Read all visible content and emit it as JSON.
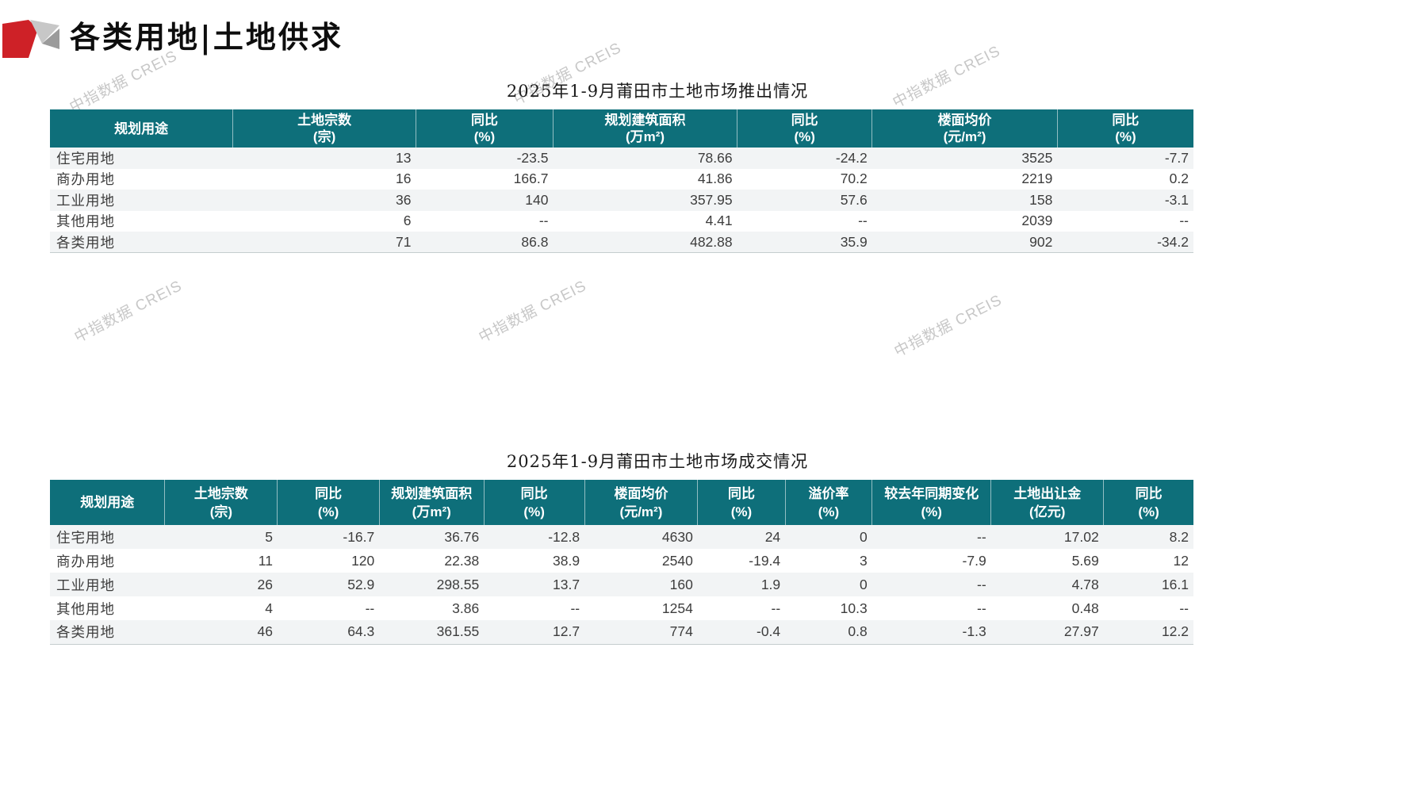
{
  "page": {
    "title": "各类用地|土地供求",
    "watermark": "中指数据 CREIS"
  },
  "colors": {
    "header_teal": "#0e6f7a",
    "row_alt": "#f2f4f5",
    "logo_red": "#ce2127",
    "logo_gray_light": "#c7c7c7",
    "logo_gray_dark": "#9b9b9b",
    "watermark_gray": "#9a9a9a"
  },
  "table1": {
    "title": "2025年1-9月莆田市土地市场推出情况",
    "columns": [
      {
        "label": "规划用途",
        "unit": ""
      },
      {
        "label": "土地宗数",
        "unit": "(宗)"
      },
      {
        "label": "同比",
        "unit": "(%)"
      },
      {
        "label": "规划建筑面积",
        "unit": "(万m²)"
      },
      {
        "label": "同比",
        "unit": "(%)"
      },
      {
        "label": "楼面均价",
        "unit": "(元/m²)"
      },
      {
        "label": "同比",
        "unit": "(%)"
      }
    ],
    "rows": [
      [
        "住宅用地",
        "13",
        "-23.5",
        "78.66",
        "-24.2",
        "3525",
        "-7.7"
      ],
      [
        "商办用地",
        "16",
        "166.7",
        "41.86",
        "70.2",
        "2219",
        "0.2"
      ],
      [
        "工业用地",
        "36",
        "140",
        "357.95",
        "57.6",
        "158",
        "-3.1"
      ],
      [
        "其他用地",
        "6",
        "--",
        "4.41",
        "--",
        "2039",
        "--"
      ],
      [
        "各类用地",
        "71",
        "86.8",
        "482.88",
        "35.9",
        "902",
        "-34.2"
      ]
    ]
  },
  "table2": {
    "title": "2025年1-9月莆田市土地市场成交情况",
    "columns": [
      {
        "label": "规划用途",
        "unit": ""
      },
      {
        "label": "土地宗数",
        "unit": "(宗)"
      },
      {
        "label": "同比",
        "unit": "(%)"
      },
      {
        "label": "规划建筑面积",
        "unit": "(万m²)"
      },
      {
        "label": "同比",
        "unit": "(%)"
      },
      {
        "label": "楼面均价",
        "unit": "(元/m²)"
      },
      {
        "label": "同比",
        "unit": "(%)"
      },
      {
        "label": "溢价率",
        "unit": "(%)"
      },
      {
        "label": "较去年同期变化",
        "unit": "(%)"
      },
      {
        "label": "土地出让金",
        "unit": "(亿元)"
      },
      {
        "label": "同比",
        "unit": "(%)"
      }
    ],
    "rows": [
      [
        "住宅用地",
        "5",
        "-16.7",
        "36.76",
        "-12.8",
        "4630",
        "24",
        "0",
        "--",
        "17.02",
        "8.2"
      ],
      [
        "商办用地",
        "11",
        "120",
        "22.38",
        "38.9",
        "2540",
        "-19.4",
        "3",
        "-7.9",
        "5.69",
        "12"
      ],
      [
        "工业用地",
        "26",
        "52.9",
        "298.55",
        "13.7",
        "160",
        "1.9",
        "0",
        "--",
        "4.78",
        "16.1"
      ],
      [
        "其他用地",
        "4",
        "--",
        "3.86",
        "--",
        "1254",
        "--",
        "10.3",
        "--",
        "0.48",
        "--"
      ],
      [
        "各类用地",
        "46",
        "64.3",
        "361.55",
        "12.7",
        "774",
        "-0.4",
        "0.8",
        "-1.3",
        "27.97",
        "12.2"
      ]
    ]
  }
}
